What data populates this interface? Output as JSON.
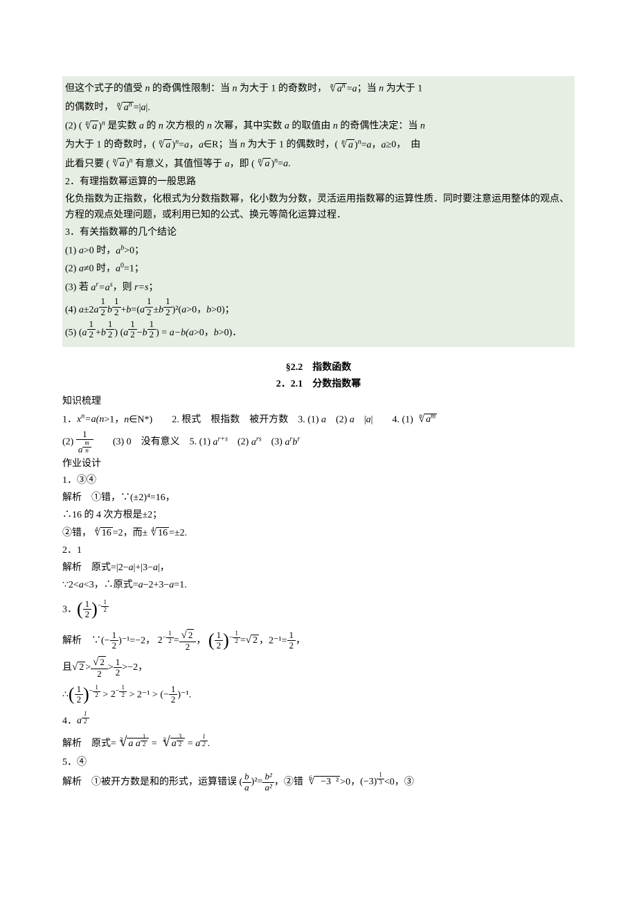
{
  "block1": {
    "p1a": "但这个式子的值受 ",
    "p1b": " 的奇偶性限制：当 ",
    "p1c": " 为大于 1 的奇数时，",
    "p1d": "；当 ",
    "p1e": " 为大于 1",
    "p2a": "的偶数时，",
    "p3a": "(2) (",
    "p3b": " 是实数 ",
    "p3c": " 的 ",
    "p3d": " 次方根的 ",
    "p3e": " 次幂，其中实数 ",
    "p3f": " 的取值由 ",
    "p3g": " 的奇偶性决定：当 ",
    "p4a": "为大于 1 的奇数时，(",
    "p4b": "∈R；当 ",
    "p4c": " 为大于 1 的偶数时，(",
    "p4d": "≥0，　由",
    "p5a": "此看只要 (",
    "p5b": " 有意义，其值恒等于 ",
    "p5c": "，即 (",
    "h2": "2．有理指数幂运算的一般思路",
    "p6": "化负指数为正指数，化根式为分数指数幂，化小数为分数，灵活运用指数幂的运算性质．同时要注意运用整体的观点、方程的观点处理问题，或利用已知的公式、换元等简化运算过程．",
    "h3": "3．有关指数幂的几个结论",
    "item1a": "(1) ",
    "item1b": ">0 时，",
    "item1c": ">0；",
    "item2a": "(2) ",
    "item2b": "≠0 时，",
    "item2c": "=1；",
    "item3a": "(3) 若 ",
    "item3b": "，则 ",
    "item3c": "；",
    "item4a": "(4) ",
    "item4b": ">0，",
    "item4c": ">0)；",
    "item5a": "(5) (",
    "item5b": ") (",
    "item5c": ") = ",
    "item5d": ">0，",
    "item5e": ">0)．"
  },
  "title1": "§2.2　指数函数",
  "title2": "2．2.1　分数指数幂",
  "sec_zs": "知识梳理",
  "zs": {
    "p1a": "1．",
    "p1b": ">1，",
    "p1c": "∈N*)　　2. 根式　根指数　被开方数　3. (1) ",
    "p1d": "　(2) ",
    "p1e": "　|",
    "p1f": "|　　4. (1) ",
    "p2a": "(2) ",
    "p2b": "　　(3) 0　没有意义　5. (1) ",
    "p2c": "　(2) ",
    "p2d": "　(3) "
  },
  "sec_zy": "作业设计",
  "q1": {
    "t": "1．③④",
    "s1": "解析　①错，∵(±2)⁴=16，",
    "s2": "∴16 的 4 次方根是±2；",
    "s3a": "②错，",
    "s3b": "=2，而±",
    "s3c": "=±2."
  },
  "q2": {
    "t": "2．1",
    "s1a": "解析　原式=|2−",
    "s1b": "|+|3−",
    "s1c": "|，",
    "s2a": "∵2<",
    "s2b": "<3，∴原式=",
    "s2c": "−2+3−",
    "s2d": "=1."
  },
  "q3": {
    "t": "3．",
    "s1a": "解析　∵(−",
    "s1b": ")⁻¹=−2，",
    "s1c": "，",
    "s1d": "，2⁻¹=",
    "s1e": "，",
    "s2a": "且",
    "s2b": ">",
    "s2c": ">−2，",
    "s3a": "∴",
    "s3b": " > ",
    "s3c": " > 2⁻¹ > (−",
    "s3d": ")⁻¹."
  },
  "q4": {
    "t": "4．",
    "s1a": "解析　原式=",
    "s1b": " = ",
    "s1c": " = "
  },
  "q5": {
    "t": "5．④",
    "s1a": "解析　①被开方数是和的形式，运算错误 (",
    "s1b": "，②错 ",
    "s1c": ">0，",
    "s1d": "<0，③"
  },
  "vars": {
    "n": "n",
    "a": "a",
    "b": "b",
    "r": "r",
    "s": "s",
    "x": "x",
    "m": "m"
  }
}
